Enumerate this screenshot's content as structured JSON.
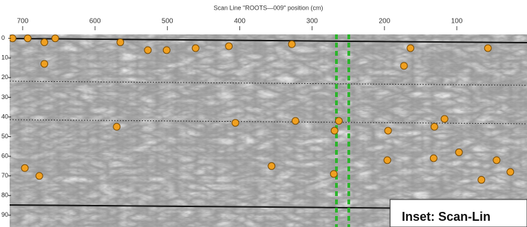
{
  "chart_data": {
    "type": "scatter",
    "title": "Scan Line \"ROOTS—009\" position (cm)",
    "annotation": "Inset: Scan-Lin",
    "xlim": [
      718,
      3
    ],
    "ylim": [
      -2,
      96
    ],
    "xticks": [
      700,
      600,
      500,
      400,
      300,
      200,
      100
    ],
    "yticks": [
      0,
      10,
      20,
      30,
      40,
      50,
      60,
      70,
      80,
      90
    ],
    "grid": false,
    "series": [
      {
        "color": "#f0a020",
        "x": [
          714,
          693,
          670,
          655,
          670,
          565,
          527,
          501,
          461,
          415,
          328,
          164,
          173,
          57,
          570,
          406,
          323,
          263,
          269,
          195,
          131,
          117,
          97,
          132,
          196,
          356,
          270,
          697,
          677,
          66,
          45,
          26
        ],
        "values": [
          0,
          0,
          2,
          0,
          13,
          2,
          6,
          6,
          5,
          4,
          3,
          5,
          14,
          5,
          45,
          43,
          42,
          42,
          47,
          47,
          45,
          41,
          58,
          61,
          62,
          65,
          69,
          66,
          70,
          72,
          62,
          68
        ]
      }
    ]
  }
}
